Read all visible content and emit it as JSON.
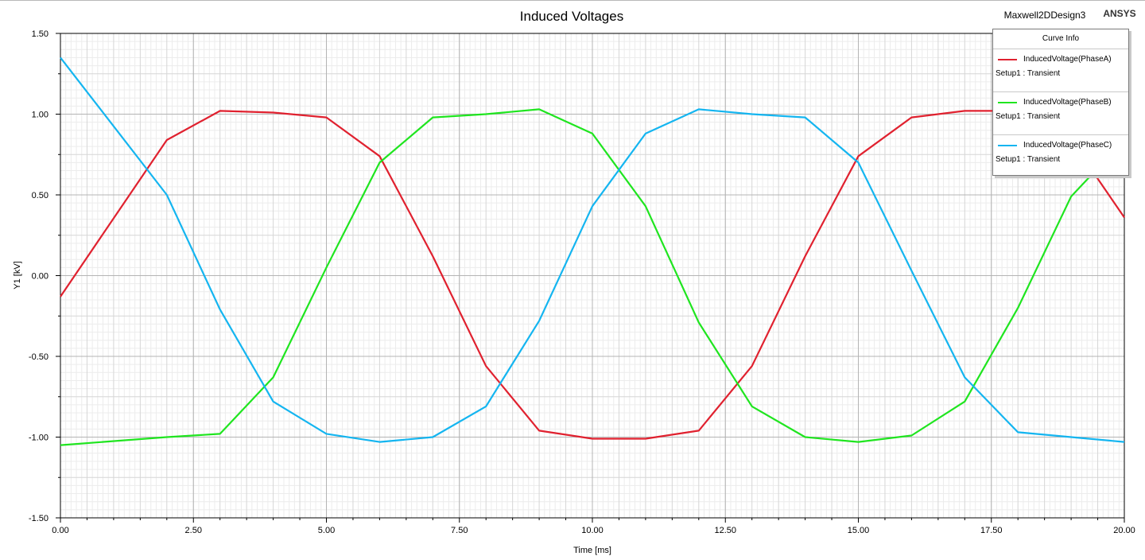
{
  "header": {
    "design_name": "Maxwell2DDesign3",
    "brand": "ANSYS"
  },
  "legend": {
    "title": "Curve Info",
    "entries": [
      {
        "name": "InducedVoltage(PhaseA)",
        "setup": "Setup1 : Transient",
        "color": "#e0212f"
      },
      {
        "name": "InducedVoltage(PhaseB)",
        "setup": "Setup1 : Transient",
        "color": "#1fe51f"
      },
      {
        "name": "InducedVoltage(PhaseC)",
        "setup": "Setup1 : Transient",
        "color": "#14b5f0"
      }
    ]
  },
  "chart_data": {
    "type": "line",
    "title": "Induced Voltages",
    "xlabel": "Time [ms]",
    "ylabel": "Y1 [kV]",
    "xlim": [
      0,
      20
    ],
    "ylim": [
      -1.5,
      1.5
    ],
    "x_ticks": [
      "0.00",
      "2.50",
      "5.00",
      "7.50",
      "10.00",
      "12.50",
      "15.00",
      "17.50",
      "20.00"
    ],
    "y_ticks": [
      "1.50",
      "1.00",
      "0.50",
      "0.00",
      "-0.50",
      "-1.00",
      "-1.50"
    ],
    "grid": true,
    "legend_position": "top-right",
    "x": [
      0,
      2,
      3,
      4,
      5,
      6,
      7,
      8,
      9,
      10,
      11,
      12,
      13,
      14,
      15,
      16,
      17,
      18,
      19,
      20
    ],
    "series": [
      {
        "name": "InducedVoltage(PhaseA)",
        "color": "#e0212f",
        "values": [
          -0.13,
          0.84,
          1.02,
          1.01,
          0.98,
          0.74,
          0.12,
          -0.56,
          -0.96,
          -1.01,
          -1.01,
          -0.96,
          -0.56,
          0.12,
          0.74,
          0.98,
          1.02,
          1.02,
          0.84,
          0.36
        ]
      },
      {
        "name": "InducedVoltage(PhaseB)",
        "color": "#1fe51f",
        "values": [
          -1.05,
          -1.0,
          -0.98,
          -0.63,
          0.05,
          0.7,
          0.98,
          1.0,
          1.03,
          0.88,
          0.43,
          -0.29,
          -0.81,
          -1.0,
          -1.03,
          -0.99,
          -0.78,
          -0.2,
          0.49,
          0.84
        ]
      },
      {
        "name": "InducedVoltage(PhaseC)",
        "color": "#14b5f0",
        "values": [
          1.35,
          0.5,
          -0.21,
          -0.78,
          -0.98,
          -1.03,
          -1.0,
          -0.81,
          -0.28,
          0.43,
          0.88,
          1.03,
          1.0,
          0.98,
          0.7,
          0.03,
          -0.63,
          -0.97,
          -1.0,
          -1.03
        ]
      }
    ]
  }
}
